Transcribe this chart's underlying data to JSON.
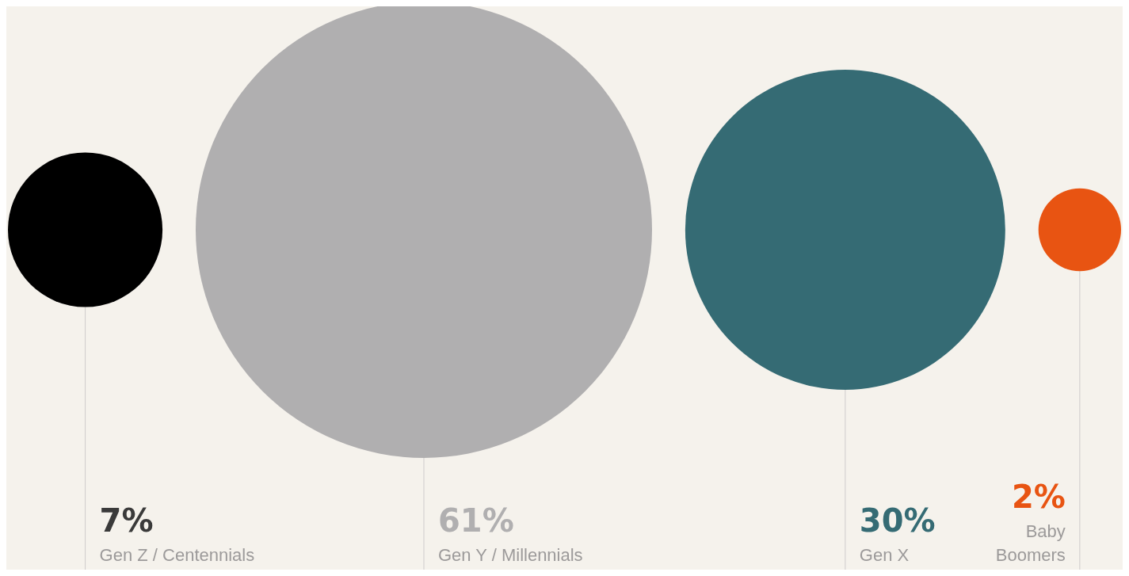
{
  "chart_data": {
    "type": "other",
    "categories": [
      "Gen Z / Centennials",
      "Gen Y / Millennials",
      "Gen X",
      "Baby Boomers"
    ],
    "values": [
      7,
      61,
      30,
      2
    ],
    "value_labels": [
      "7%",
      "61%",
      "30%",
      "2%"
    ],
    "colors": [
      "#000000",
      "#b0afb0",
      "#356b74",
      "#e85412"
    ]
  }
}
